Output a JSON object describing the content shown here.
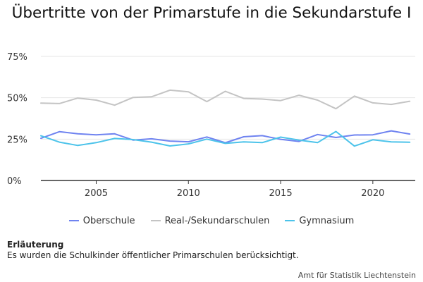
{
  "chart_data": {
    "type": "line",
    "title": "Übertritte von der Primarstufe in die Sekundarstufe I",
    "x": [
      2002,
      2003,
      2004,
      2005,
      2006,
      2007,
      2008,
      2009,
      2010,
      2011,
      2012,
      2013,
      2014,
      2015,
      2016,
      2017,
      2018,
      2019,
      2020,
      2021,
      2022
    ],
    "x_ticks": [
      2005,
      2010,
      2015,
      2020
    ],
    "y_ticks": [
      0,
      25,
      50,
      75
    ],
    "y_tick_labels": [
      "0%",
      "25%",
      "50%",
      "75%"
    ],
    "ylim": [
      0,
      75
    ],
    "xlim": [
      2002,
      2022.3
    ],
    "grid": true,
    "legend_position": "bottom",
    "series": [
      {
        "name": "Oberschule",
        "color": "#6f83f0",
        "values": [
          25.5,
          29.5,
          28.2,
          27.6,
          28.2,
          24.4,
          25.2,
          23.8,
          23.4,
          26.3,
          22.8,
          26.4,
          27.1,
          24.9,
          23.6,
          27.8,
          26.0,
          27.5,
          27.6,
          30.0,
          28.1
        ]
      },
      {
        "name": "Real-/Sekundarschulen",
        "color": "#c4c4c4",
        "values": [
          46.8,
          46.5,
          49.8,
          48.6,
          45.5,
          50.2,
          50.6,
          54.6,
          53.6,
          47.7,
          53.9,
          49.6,
          49.2,
          48.3,
          51.5,
          48.6,
          43.4,
          51.0,
          46.9,
          46.0,
          47.9
        ]
      },
      {
        "name": "Gymnasium",
        "color": "#4cc3ea",
        "values": [
          27.0,
          23.2,
          21.2,
          22.9,
          25.4,
          24.7,
          23.2,
          20.9,
          22.1,
          25.0,
          22.4,
          23.3,
          22.9,
          26.2,
          24.4,
          22.9,
          29.6,
          20.8,
          24.6,
          23.3,
          23.1
        ]
      }
    ]
  },
  "note": {
    "heading": "Erläuterung",
    "text": "Es wurden die Schulkinder öffentlicher Primarschulen berücksichtigt."
  },
  "source": "Amt für Statistik Liechtenstein"
}
